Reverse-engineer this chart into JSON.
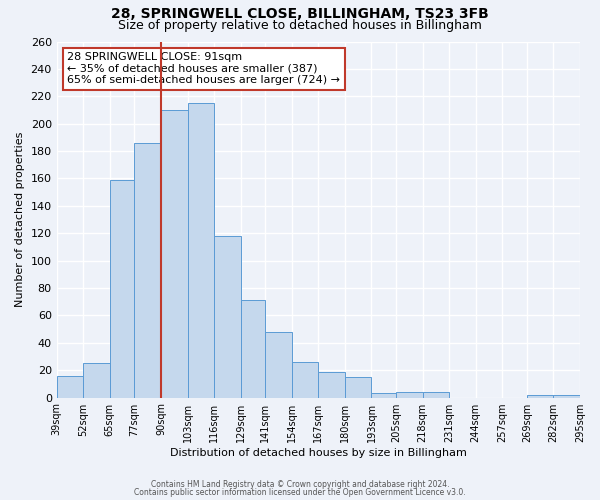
{
  "title": "28, SPRINGWELL CLOSE, BILLINGHAM, TS23 3FB",
  "subtitle": "Size of property relative to detached houses in Billingham",
  "xlabel": "Distribution of detached houses by size in Billingham",
  "ylabel": "Number of detached properties",
  "bar_color": "#c5d8ed",
  "bar_edge_color": "#5b9bd5",
  "background_color": "#eef2f9",
  "grid_color": "#ffffff",
  "bin_left_edges": [
    39,
    52,
    65,
    77,
    90,
    103,
    116,
    129,
    141,
    154,
    167,
    180,
    193,
    205,
    218,
    231,
    244,
    257,
    269,
    282
  ],
  "bin_right_edges": [
    52,
    65,
    77,
    90,
    103,
    116,
    129,
    141,
    154,
    167,
    180,
    193,
    205,
    218,
    231,
    244,
    257,
    269,
    282,
    295
  ],
  "bar_heights": [
    16,
    25,
    159,
    186,
    210,
    215,
    118,
    71,
    48,
    26,
    19,
    15,
    3,
    4,
    4,
    0,
    0,
    0,
    2,
    2
  ],
  "tick_labels": [
    "39sqm",
    "52sqm",
    "65sqm",
    "77sqm",
    "90sqm",
    "103sqm",
    "116sqm",
    "129sqm",
    "141sqm",
    "154sqm",
    "167sqm",
    "180sqm",
    "193sqm",
    "205sqm",
    "218sqm",
    "231sqm",
    "244sqm",
    "257sqm",
    "269sqm",
    "282sqm",
    "295sqm"
  ],
  "tick_positions": [
    39,
    52,
    65,
    77,
    90,
    103,
    116,
    129,
    141,
    154,
    167,
    180,
    193,
    205,
    218,
    231,
    244,
    257,
    269,
    282,
    295
  ],
  "property_line_x": 90,
  "property_line_color": "#c0392b",
  "annotation_line1": "28 SPRINGWELL CLOSE: 91sqm",
  "annotation_line2": "← 35% of detached houses are smaller (387)",
  "annotation_line3": "65% of semi-detached houses are larger (724) →",
  "annotation_box_color": "#ffffff",
  "annotation_box_edge_color": "#c0392b",
  "ylim": [
    0,
    260
  ],
  "yticks": [
    0,
    20,
    40,
    60,
    80,
    100,
    120,
    140,
    160,
    180,
    200,
    220,
    240,
    260
  ],
  "footer_line1": "Contains HM Land Registry data © Crown copyright and database right 2024.",
  "footer_line2": "Contains public sector information licensed under the Open Government Licence v3.0.",
  "title_fontsize": 10,
  "subtitle_fontsize": 9,
  "axis_label_fontsize": 8,
  "tick_fontsize": 7,
  "annotation_fontsize": 8
}
